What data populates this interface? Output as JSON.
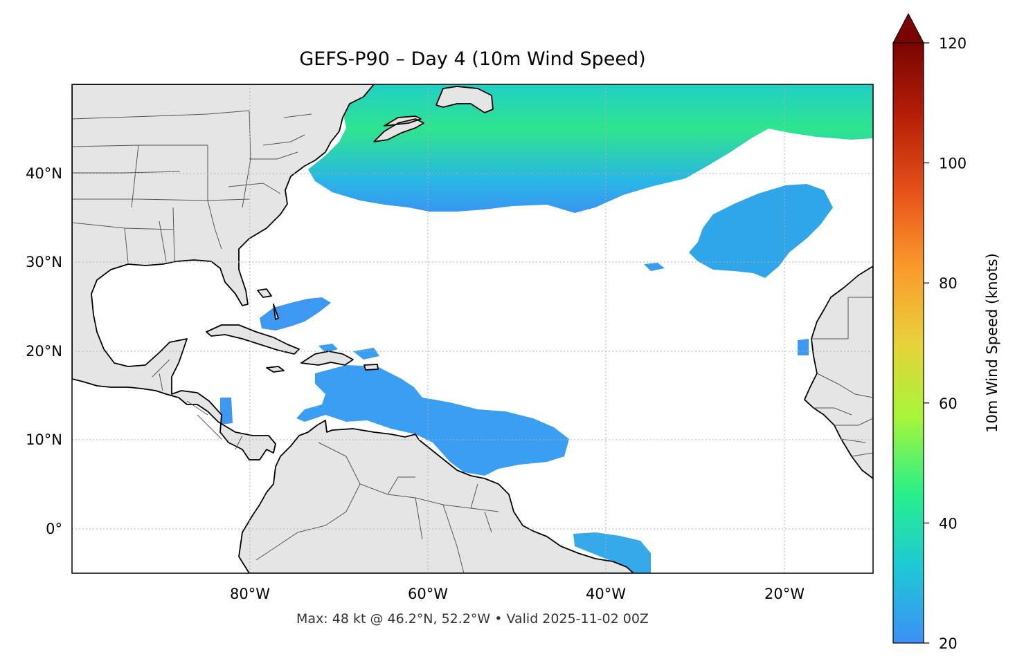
{
  "title": "GEFS-P90 – Day 4 (10m Wind Speed)",
  "footer": "Max: 48 kt @ 46.2°N, 52.2°W • Valid 2025-11-02 00Z",
  "map": {
    "extent": {
      "lon": [
        -100,
        -10
      ],
      "lat": [
        -5,
        50
      ]
    },
    "lon_ticks": [
      {
        "value": -80,
        "label": "80°W"
      },
      {
        "value": -60,
        "label": "60°W"
      },
      {
        "value": -40,
        "label": "40°W"
      },
      {
        "value": -20,
        "label": "20°W"
      }
    ],
    "lat_ticks": [
      {
        "value": 40,
        "label": "40°N"
      },
      {
        "value": 30,
        "label": "30°N"
      },
      {
        "value": 20,
        "label": "20°N"
      },
      {
        "value": 10,
        "label": "10°N"
      },
      {
        "value": 0,
        "label": "0°"
      }
    ],
    "land_color": "#e5e5e5",
    "ocean_color": "#ffffff"
  },
  "colorbar": {
    "label": "10m Wind Speed (knots)",
    "min": 20,
    "max": 120,
    "extend": "max",
    "ticks": [
      {
        "value": 20,
        "label": "20"
      },
      {
        "value": 40,
        "label": "40"
      },
      {
        "value": 60,
        "label": "60"
      },
      {
        "value": 80,
        "label": "80"
      },
      {
        "value": 100,
        "label": "100"
      },
      {
        "value": 120,
        "label": "120"
      }
    ],
    "colors": [
      "#3d8ff7",
      "#1dc8d8",
      "#28f08a",
      "#a6f53a",
      "#e8d13a",
      "#fb9a2c",
      "#e8521a",
      "#b81f07",
      "#7a0403"
    ]
  },
  "wind_fields": [
    {
      "region": "north-atlantic-band",
      "level_kt": 30
    },
    {
      "region": "azores-patch",
      "level_kt": 25
    },
    {
      "region": "caribbean-patch",
      "level_kt": 22
    },
    {
      "region": "bahamas-patch",
      "level_kt": 21
    },
    {
      "region": "brazil-coast-patch",
      "level_kt": 22
    }
  ]
}
